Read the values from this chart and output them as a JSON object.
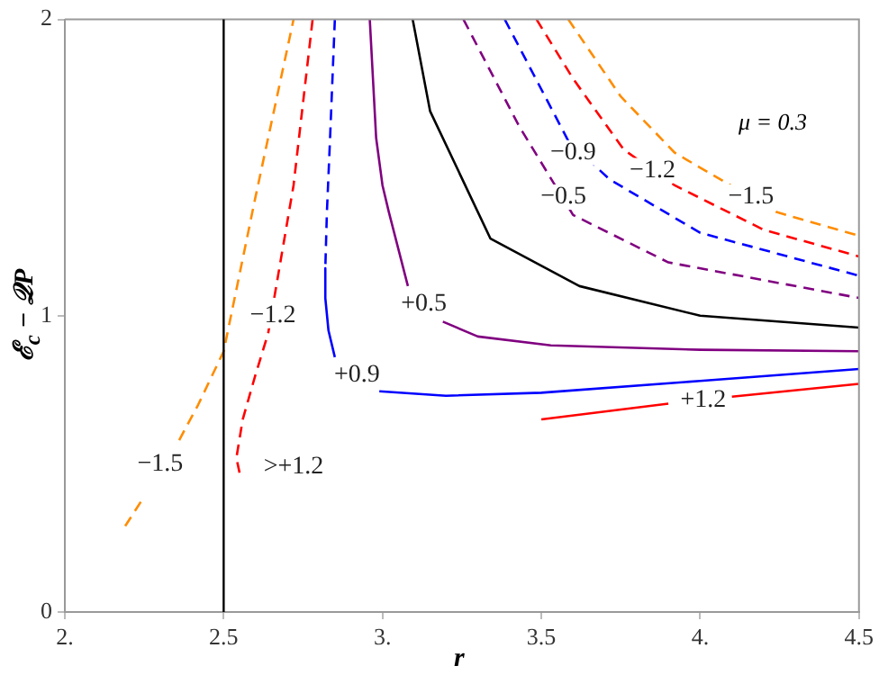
{
  "chart_data": {
    "type": "line",
    "xlabel": "r",
    "ylabel": "ℰ$_{c}$ − 𝒬P",
    "xlim": [
      2,
      4.5
    ],
    "ylim": [
      0,
      2
    ],
    "xticks": [
      {
        "value": 2,
        "label": "2."
      },
      {
        "value": 2.5,
        "label": "2.5"
      },
      {
        "value": 3,
        "label": "3."
      },
      {
        "value": 3.5,
        "label": "3.5"
      },
      {
        "value": 4,
        "label": "4."
      },
      {
        "value": 4.5,
        "label": "4.5"
      }
    ],
    "yticks": [
      0,
      1,
      2
    ],
    "grid": false,
    "legend": false,
    "marker": "none",
    "series": [
      {
        "color": "#ff8c00",
        "line_style": "dashed",
        "x": [
          2.19,
          2.25,
          2.3,
          2.36,
          2.42,
          2.5,
          2.6,
          2.72
        ],
        "values": [
          0.29,
          0.39,
          null,
          0.58,
          0.7,
          0.88,
          1.4,
          2
        ]
      },
      {
        "color": "#ff8c00",
        "line_style": "dashed",
        "x": [
          3.585,
          3.75,
          3.92,
          4.24,
          4.5
        ],
        "values": [
          2,
          1.74,
          1.55,
          1.35,
          1.27
        ]
      },
      {
        "color": "#ff0000",
        "line_style": "dashed",
        "x": [
          2.55,
          2.54,
          2.56,
          2.6,
          2.64,
          2.72,
          2.78
        ],
        "values": [
          0.47,
          0.52,
          0.65,
          0.8,
          0.94,
          1.44,
          2
        ]
      },
      {
        "color": "#ff0000",
        "line_style": "dashed",
        "x": [
          3.485,
          3.6,
          3.76,
          3.92,
          4.2,
          4.5
        ],
        "values": [
          2,
          1.8,
          1.56,
          1.44,
          1.29,
          1.2
        ]
      },
      {
        "color": "#ff0000",
        "line_style": "solid",
        "x": [
          3.5,
          3.9,
          4,
          4.1,
          4.5
        ],
        "values": [
          0.65,
          0.703,
          null,
          0.727,
          0.77
        ]
      },
      {
        "color": "#0000ff",
        "line_style": "dashed",
        "x": [
          2.85,
          2.835,
          2.825,
          2.82
        ],
        "values": [
          2,
          1.6,
          1.35,
          1.16
        ]
      },
      {
        "color": "#0000ff",
        "line_style": "solid",
        "x": [
          2.82,
          2.82,
          2.83,
          2.85,
          2.92,
          2.99,
          3.2,
          3.5,
          4,
          4.5
        ],
        "values": [
          1.16,
          1.06,
          0.95,
          0.86,
          null,
          0.745,
          0.73,
          0.74,
          0.78,
          0.82
        ]
      },
      {
        "color": "#0000ff",
        "line_style": "dashed",
        "x": [
          3.385,
          3.585,
          3.715,
          4,
          4.5
        ],
        "values": [
          2,
          1.59,
          1.46,
          1.28,
          1.135
        ]
      },
      {
        "color": "#800080",
        "line_style": "solid",
        "x": [
          2.96,
          2.98,
          3,
          3.02,
          3.08,
          3.13,
          3.19,
          3.3,
          3.53,
          4,
          4.5
        ],
        "values": [
          2,
          1.6,
          1.44,
          1.35,
          1.1,
          null,
          0.98,
          0.93,
          0.9,
          0.885,
          0.88
        ]
      },
      {
        "color": "#800080",
        "line_style": "dashed",
        "x": [
          3.255,
          3.43,
          3.6,
          3.9,
          4.5
        ],
        "values": [
          2,
          1.64,
          1.34,
          1.18,
          1.06
        ]
      },
      {
        "color": "#000000",
        "line_style": "solid",
        "x": [
          3.095,
          3.15,
          3.34,
          3.62,
          4,
          4.5
        ],
        "values": [
          2,
          1.69,
          1.26,
          1.1,
          1,
          0.96
        ]
      }
    ],
    "ref_lines": [
      {
        "axis": "x",
        "value": 2.5,
        "color": "#000000",
        "line_style": "solid"
      }
    ],
    "annotations": [
      "μ = 0.3",
      {
        "text": "−1.5",
        "x": 2.3,
        "y": 0.5
      },
      {
        "text": "−1.2",
        "x": 2.655,
        "y": 1.0
      },
      {
        "text": ">+1.2",
        "x": 2.72,
        "y": 0.49
      },
      {
        "text": "+0.9",
        "x": 2.92,
        "y": 0.8
      },
      {
        "text": "+0.5",
        "x": 3.13,
        "y": 1.04
      },
      {
        "text": "+1.2",
        "x": 4.01,
        "y": 0.716
      },
      {
        "text": "−0.5",
        "x": 3.57,
        "y": 1.4
      },
      {
        "text": "−0.9",
        "x": 3.6,
        "y": 1.55
      },
      {
        "text": "−1.2",
        "x": 3.85,
        "y": 1.49
      },
      {
        "text": "−1.5",
        "x": 4.16,
        "y": 1.4
      }
    ]
  }
}
